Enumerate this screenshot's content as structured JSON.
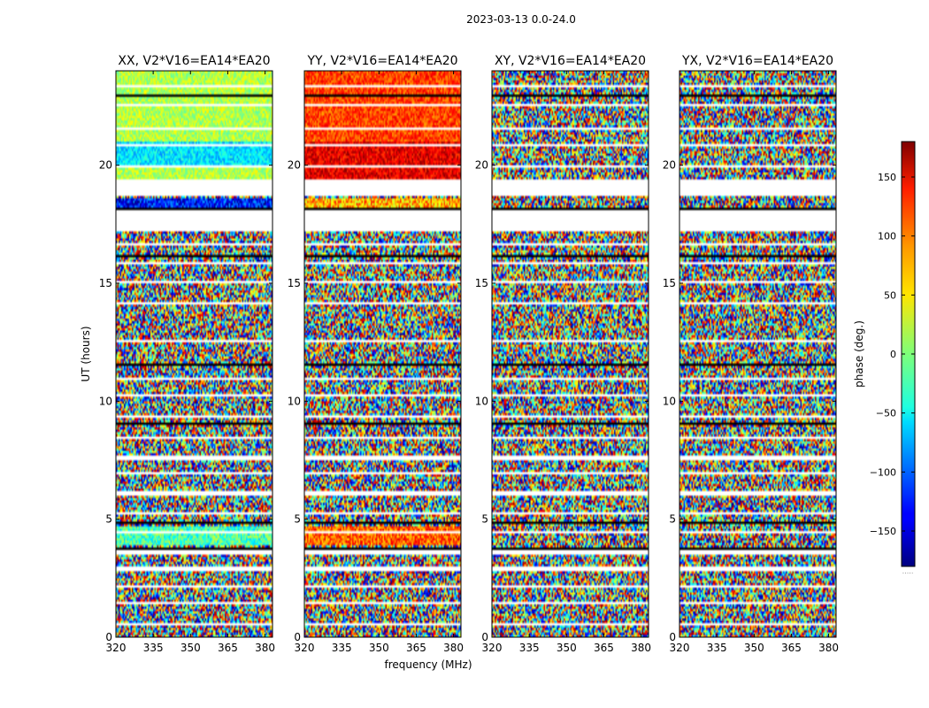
{
  "figure": {
    "suptitle": "2023-03-13 0.0-24.0"
  },
  "chart_data": {
    "type": "heatmap",
    "xlabel": "frequency (MHz)",
    "ylabel": "UT (hours)",
    "xlim": [
      320,
      383
    ],
    "ylim": [
      0,
      24
    ],
    "xticks": [
      320,
      335,
      350,
      365,
      380
    ],
    "yticks": [
      0,
      5,
      10,
      15,
      20
    ],
    "colorbar": {
      "label": "phase (deg.)",
      "range": [
        -180,
        180
      ],
      "ticks": [
        150,
        100,
        50,
        0,
        -50,
        -100,
        -150
      ],
      "tick_labels": [
        "150",
        "100",
        "50",
        "0",
        "−50",
        "−100",
        "−150"
      ],
      "colormap": "jet",
      "footer": "....."
    },
    "panels": [
      {
        "title": "XX, V2*V16=EA14*EA20",
        "pol": "XX"
      },
      {
        "title": "YY, V2*V16=EA14*EA20",
        "pol": "YY"
      },
      {
        "title": "XY, V2*V16=EA14*EA20",
        "pol": "XY"
      },
      {
        "title": "YX, V2*V16=EA14*EA20",
        "pol": "YX"
      }
    ],
    "flagged_ut_ranges": [
      [
        17.2,
        18.1
      ],
      [
        18.7,
        19.35
      ]
    ]
  }
}
